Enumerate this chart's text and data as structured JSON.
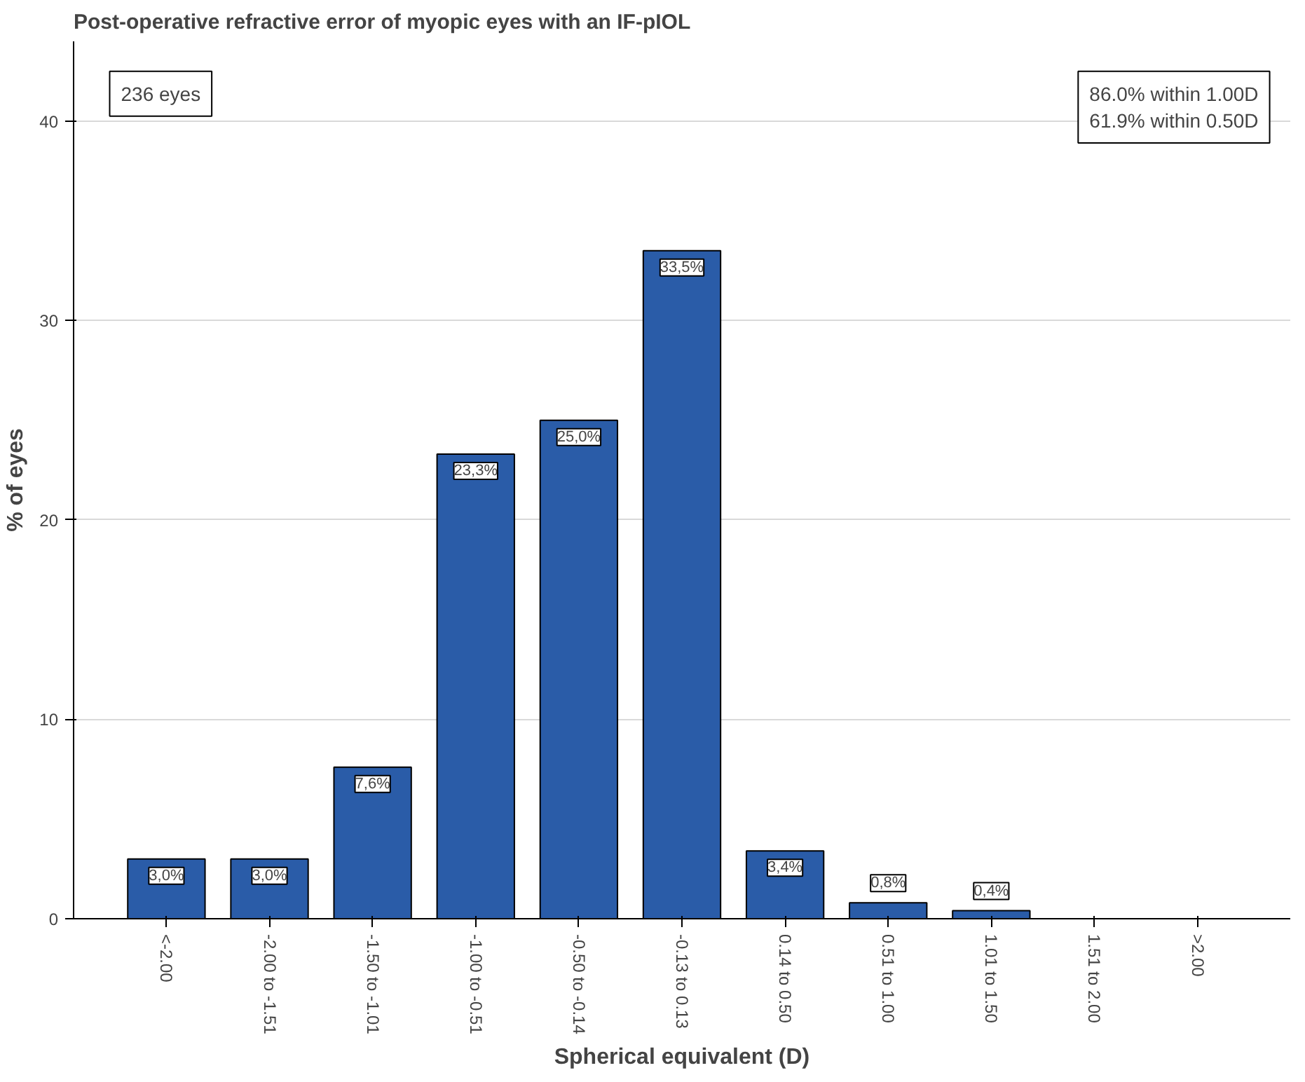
{
  "chart_data": {
    "type": "bar",
    "title": "Post-operative refractive error of myopic eyes with an IF-pIOL",
    "xlabel": "Spherical equivalent (D)",
    "ylabel": "% of eyes",
    "categories": [
      "<-2.00",
      "-2.00 to -1.51",
      "-1.50 to -1.01",
      "-1.00 to -0.51",
      "-0.50 to -0.14",
      "-0.13 to 0.13",
      "0.14 to 0.50",
      "0.51 to 1.00",
      "1.01 to 1.50",
      "1.51 to 2.00",
      ">2.00"
    ],
    "values": [
      3.0,
      3.0,
      7.6,
      23.3,
      25.0,
      33.5,
      3.4,
      0.8,
      0.4,
      0,
      0
    ],
    "value_labels": [
      "3,0%",
      "3,0%",
      "7,6%",
      "23,3%",
      "25,0%",
      "33,5%",
      "3,4%",
      "0,8%",
      "0,4%",
      null,
      null
    ],
    "color": "#2a5ca8",
    "ylim": [
      0,
      44
    ],
    "yticks": [
      0,
      10,
      20,
      30,
      40
    ],
    "grid": "y",
    "annotations": [
      "236 eyes",
      "86.0% within 1.00D\n61.9% within 0.50D"
    ]
  }
}
